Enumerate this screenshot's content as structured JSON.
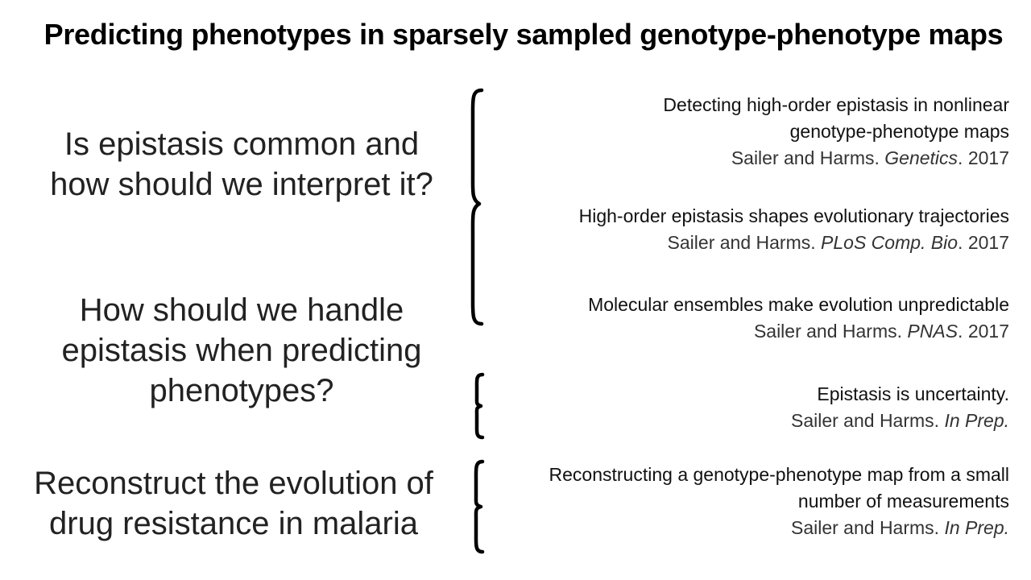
{
  "slide": {
    "title": "Predicting phenotypes in sparsely sampled genotype-phenotype maps"
  },
  "questions": [
    {
      "text": "Is epistasis common and how should we interpret it?"
    },
    {
      "text": "How should we handle epistasis when predicting phenotypes?"
    },
    {
      "text": "Reconstruct the evolution of drug resistance in malaria"
    }
  ],
  "references": [
    {
      "title": "Detecting high-order epistasis in nonlinear genotype-phenotype maps",
      "authors": "Sailer and Harms.",
      "journal": "Genetics",
      "year": ". 2017"
    },
    {
      "title": "High-order epistasis shapes evolutionary trajectories",
      "authors": "Sailer and Harms.",
      "journal": "PLoS Comp. Bio",
      "year": ". 2017"
    },
    {
      "title": "Molecular ensembles make evolution unpredictable",
      "authors": "Sailer and Harms.",
      "journal": "PNAS",
      "year": ". 2017"
    },
    {
      "title": "Epistasis is uncertainty.",
      "authors": "Sailer and Harms.",
      "journal": "In Prep.",
      "year": ""
    },
    {
      "title": "Reconstructing a genotype-phenotype map from a small number of measurements",
      "authors": "Sailer and Harms.",
      "journal": "In Prep.",
      "year": ""
    }
  ]
}
